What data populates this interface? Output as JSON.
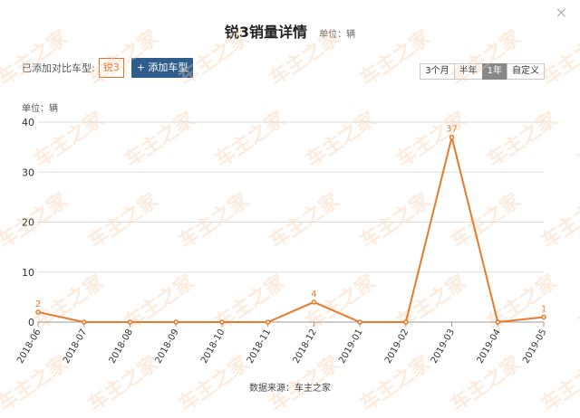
{
  "dialog": {
    "title": "锐3销量详情",
    "unit": "单位：辆",
    "close_icon": "×"
  },
  "compare": {
    "label": "已添加对比车型:",
    "model": "锐3",
    "add_button": "+ 添加车型"
  },
  "range_tabs": [
    {
      "label": "3个月",
      "active": false
    },
    {
      "label": "半年",
      "active": false
    },
    {
      "label": "1年",
      "active": true
    },
    {
      "label": "自定义",
      "active": false
    }
  ],
  "y_unit_label": "单位：辆",
  "source": "数据来源：车主之家",
  "colors": {
    "line": "#e87a2c",
    "label": "#e87a2c",
    "grid": "#dddddd",
    "watermark": "#f3c9a3"
  },
  "watermark_text": "车主之家",
  "chart_data": {
    "type": "line",
    "categories": [
      "2018-06",
      "2018-07",
      "2018-08",
      "2018-09",
      "2018-10",
      "2018-11",
      "2018-12",
      "2019-01",
      "2019-02",
      "2019-03",
      "2019-04",
      "2019-05"
    ],
    "series": [
      {
        "values": [
          2,
          0,
          0,
          0,
          0,
          0,
          4,
          0,
          0,
          37,
          0,
          1
        ]
      }
    ],
    "data_labels": [
      "2",
      "",
      "",
      "",
      "",
      "",
      "4",
      "",
      "",
      "37",
      "",
      "1"
    ],
    "yticks": [
      0,
      10,
      20,
      30,
      40
    ],
    "ylim": [
      0,
      40
    ],
    "grid": true,
    "legend": "none"
  }
}
